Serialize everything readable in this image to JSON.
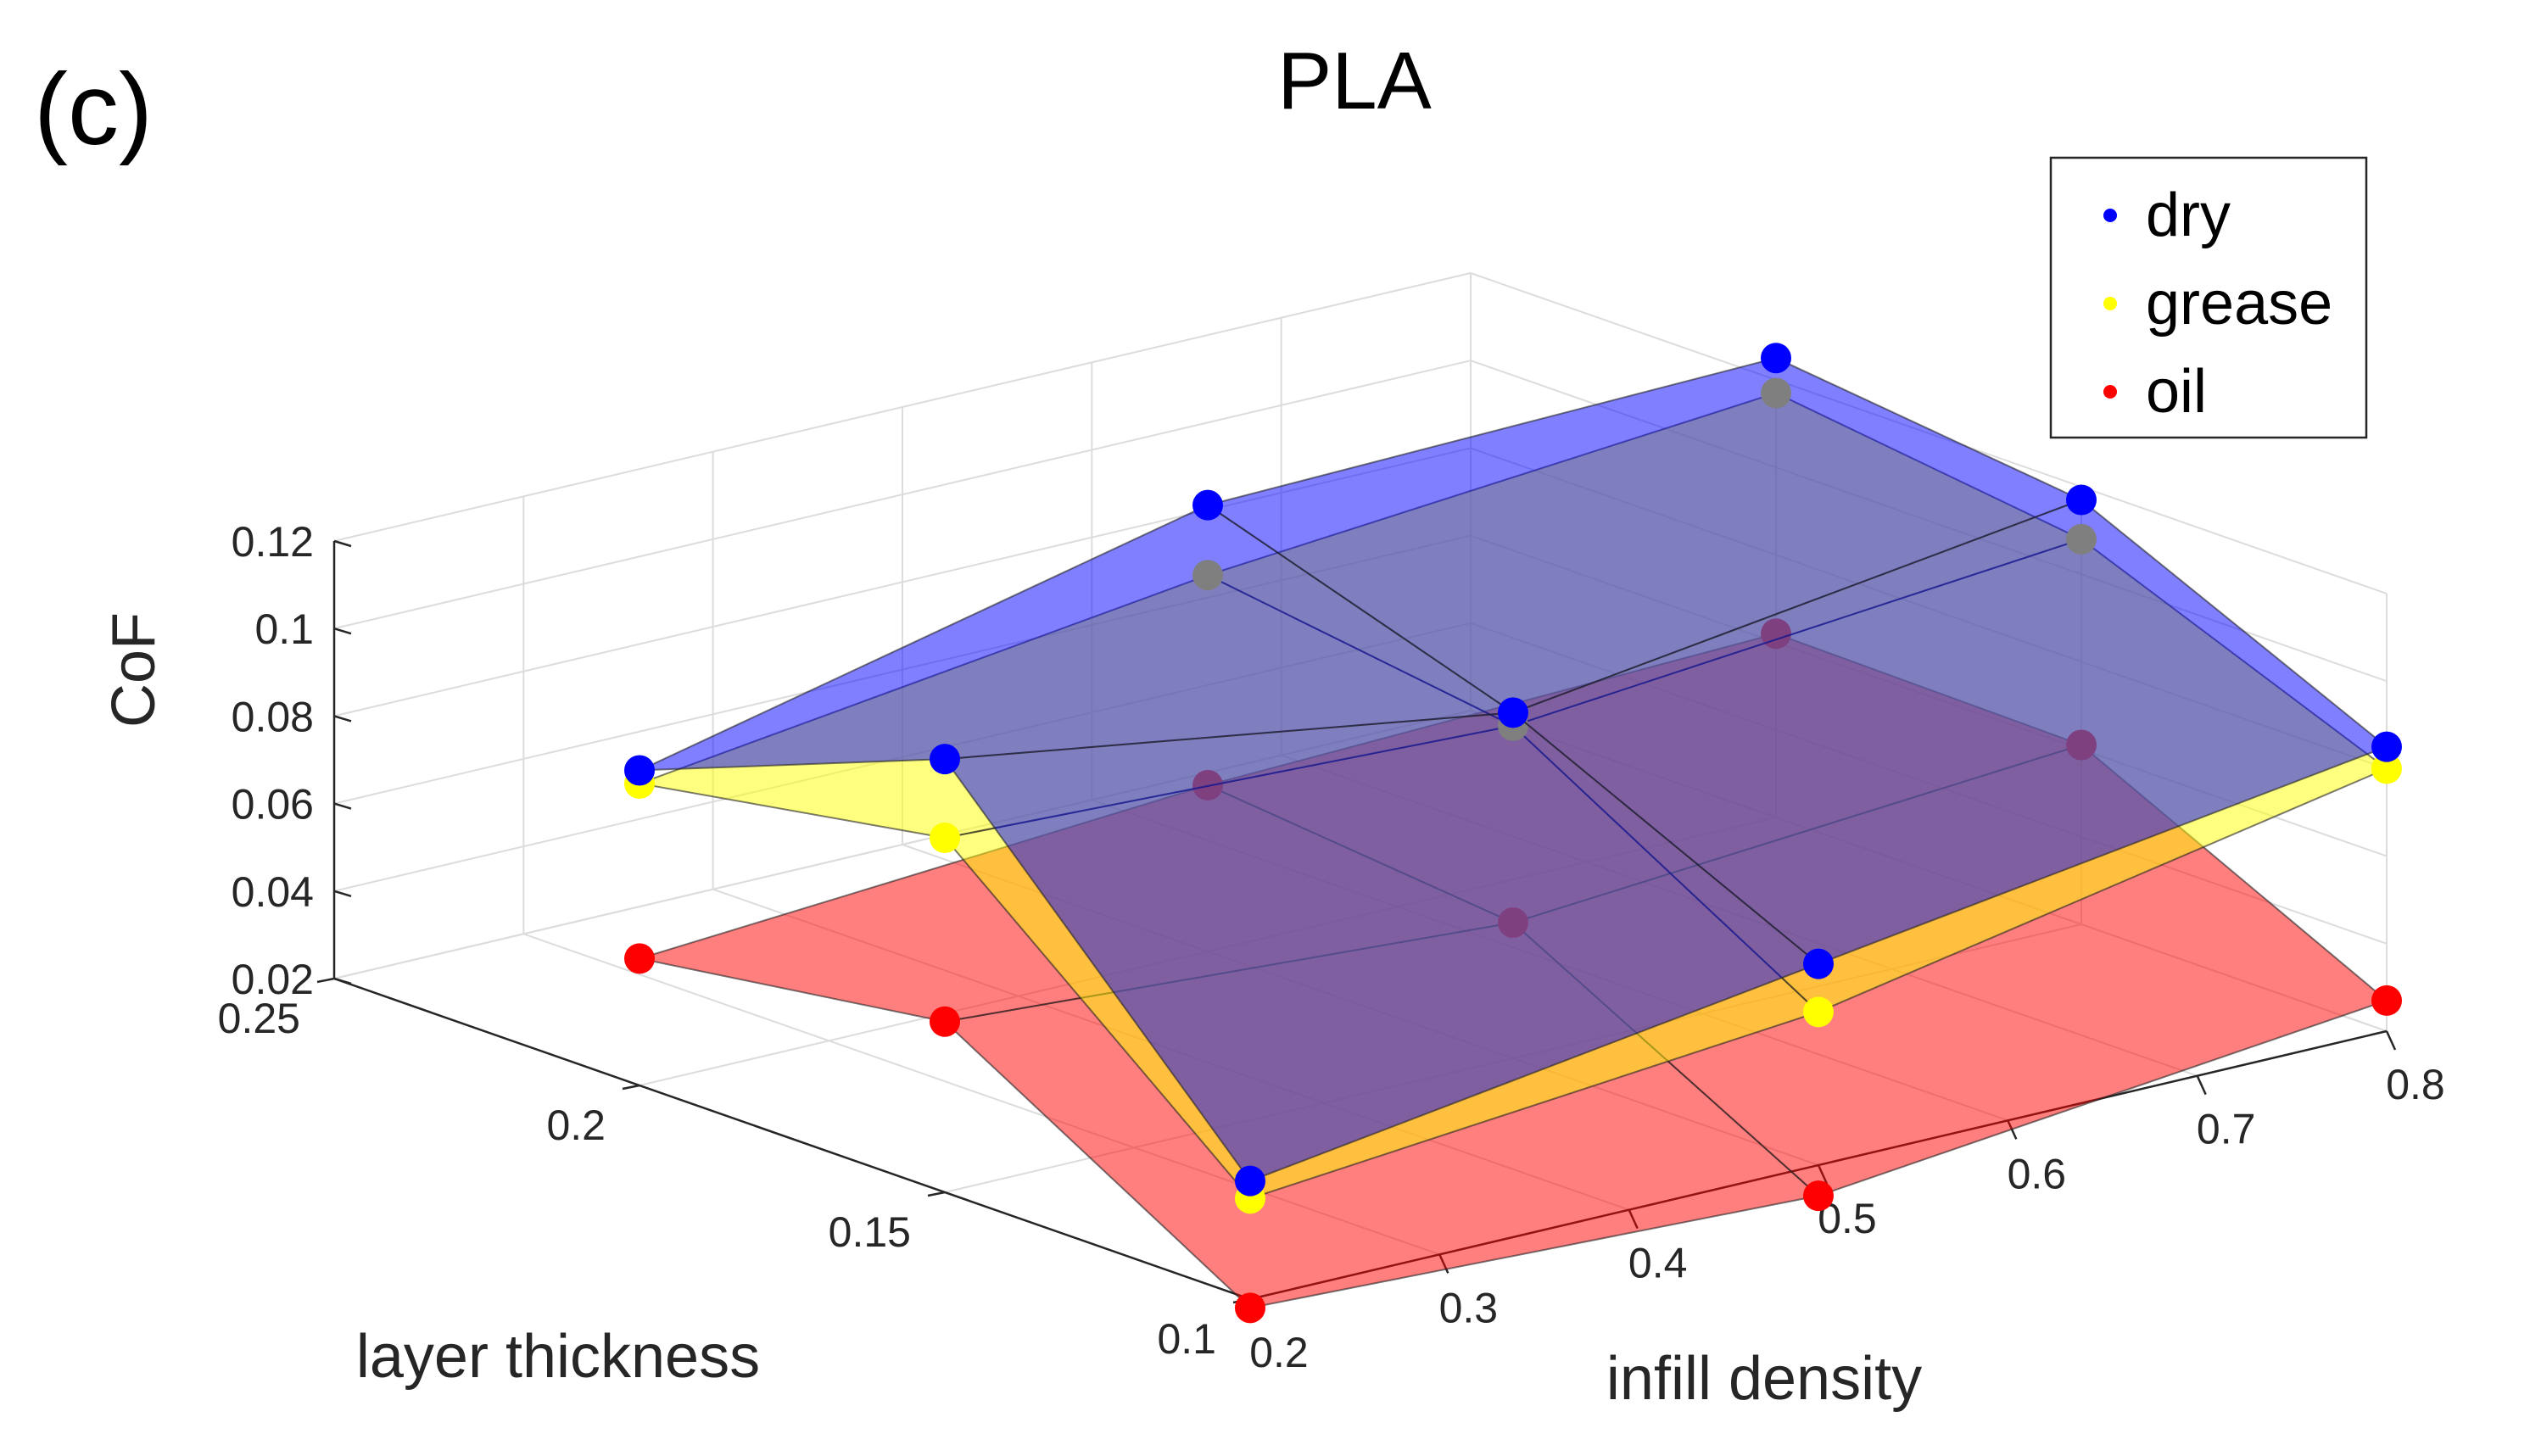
{
  "panel_label": "(c)",
  "chart_data": {
    "type": "surface3d",
    "title": "PLA",
    "xlabel": "infill density",
    "ylabel": "layer thickness",
    "zlabel": "CoF",
    "xlim": [
      0.2,
      0.8
    ],
    "ylim": [
      0.1,
      0.25
    ],
    "zlim": [
      0.02,
      0.12
    ],
    "x_ticks": [
      "0.2",
      "0.3",
      "0.4",
      "0.5",
      "0.6",
      "0.7",
      "0.8"
    ],
    "y_ticks": [
      "0.1",
      "0.15",
      "0.2",
      "0.25"
    ],
    "z_ticks": [
      "0.02",
      "0.04",
      "0.06",
      "0.08",
      "0.1",
      "0.12"
    ],
    "grid": true,
    "legend_position": "top-right",
    "x": [
      0.2,
      0.5,
      0.8
    ],
    "y": [
      0.1,
      0.15,
      0.2
    ],
    "series": [
      {
        "name": "dry",
        "color": "#0000ff",
        "z": [
          [
            0.047,
            0.066,
            0.085
          ],
          [
            0.119,
            0.099,
            0.117
          ],
          [
            0.092,
            0.122,
            0.125
          ]
        ]
      },
      {
        "name": "grease",
        "color": "#ffff00",
        "z": [
          [
            0.043,
            0.055,
            0.08
          ],
          [
            0.101,
            0.096,
            0.108
          ],
          [
            0.089,
            0.106,
            0.117
          ]
        ]
      },
      {
        "name": "oil",
        "color": "#ff0000",
        "z": [
          [
            0.018,
            0.013,
            0.027
          ],
          [
            0.059,
            0.051,
            0.061
          ],
          [
            0.049,
            0.058,
            0.062
          ]
        ]
      }
    ]
  }
}
